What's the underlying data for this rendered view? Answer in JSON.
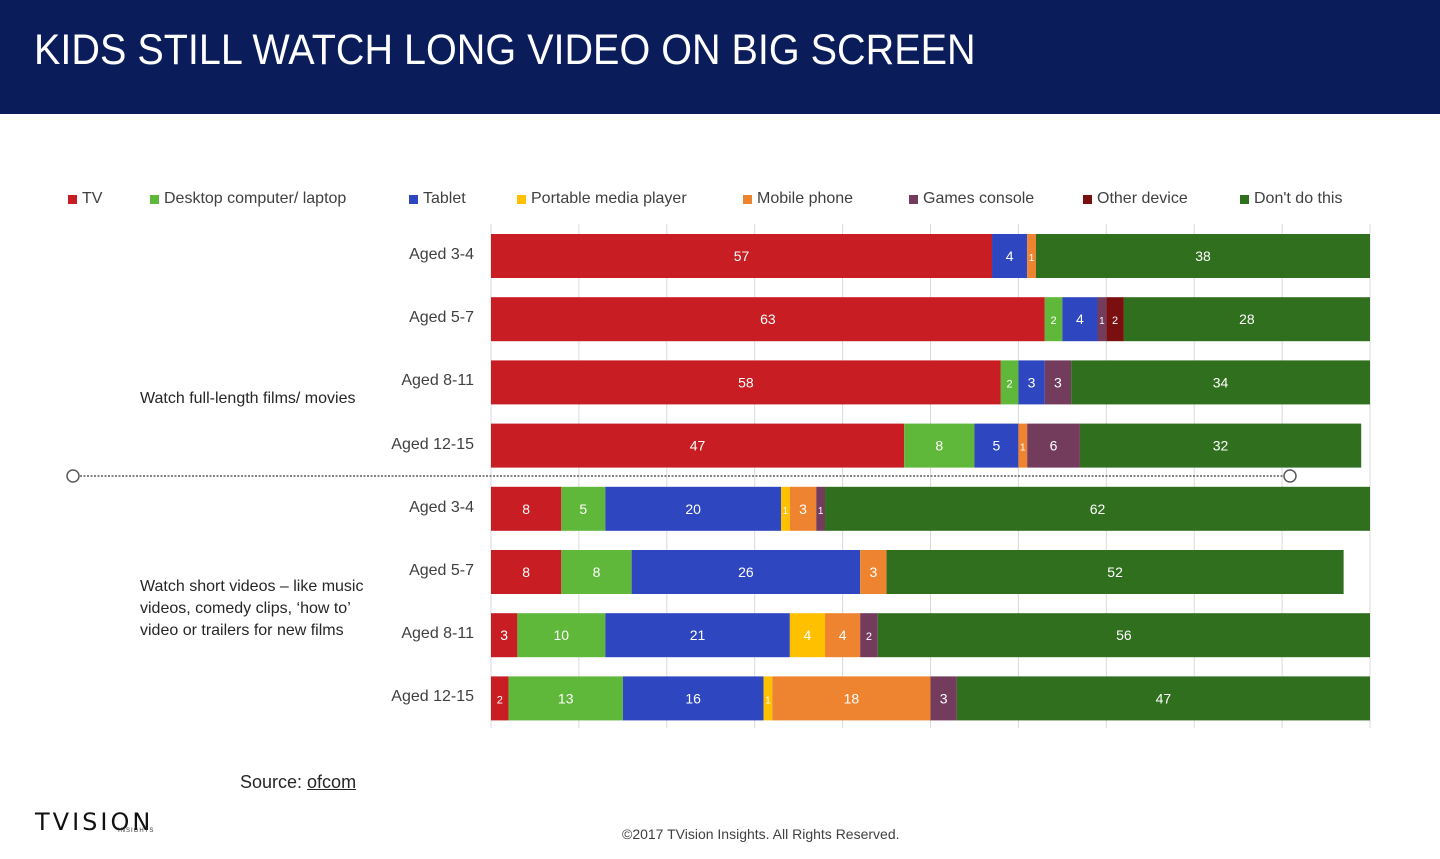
{
  "title": "KIDS STILL WATCH LONG VIDEO ON BIG SCREEN",
  "source_prefix": "Source: ",
  "source_link": "ofcom",
  "logo_text": "TVISION",
  "logo_sub": "INSIGHTS",
  "copyright": "©2017 TVision Insights. All Rights Reserved.",
  "chart_data": {
    "type": "bar",
    "orientation": "horizontal",
    "stacked": true,
    "xlim": [
      0,
      100
    ],
    "grid": true,
    "legend_position": "top",
    "series": [
      {
        "name": "TV",
        "color": "#c81e23",
        "values": [
          57,
          63,
          58,
          47,
          8,
          8,
          3,
          2
        ]
      },
      {
        "name": "Desktop computer/ laptop",
        "color": "#5fb839",
        "values": [
          0,
          2,
          2,
          8,
          5,
          8,
          10,
          13
        ]
      },
      {
        "name": "Tablet",
        "color": "#2e46bf",
        "values": [
          4,
          4,
          3,
          5,
          20,
          26,
          21,
          16
        ]
      },
      {
        "name": "Portable media player",
        "color": "#ffc000",
        "values": [
          0,
          0,
          0,
          0,
          1,
          0,
          4,
          1
        ]
      },
      {
        "name": "Mobile phone",
        "color": "#ef8430",
        "values": [
          1,
          0,
          0,
          1,
          3,
          3,
          4,
          18
        ]
      },
      {
        "name": "Games console",
        "color": "#733c5c",
        "values": [
          0,
          1,
          3,
          6,
          1,
          0,
          2,
          3
        ]
      },
      {
        "name": "Other device",
        "color": "#7a0f10",
        "values": [
          0,
          2,
          0,
          0,
          0,
          0,
          0,
          0
        ]
      },
      {
        "name": "Don't do this",
        "color": "#2f6f1e",
        "values": [
          38,
          28,
          34,
          32,
          62,
          52,
          56,
          47
        ]
      }
    ],
    "categories": [
      "Aged 3-4",
      "Aged 5-7",
      "Aged 8-11",
      "Aged 12-15",
      "Aged 3-4",
      "Aged 5-7",
      "Aged 8-11",
      "Aged 12-15"
    ],
    "groups": [
      {
        "label": "Watch full-length films/ movies",
        "rows": [
          0,
          1,
          2,
          3
        ]
      },
      {
        "label": "Watch short videos – like music videos, comedy clips, ‘how to’ video or trailers for new films",
        "rows": [
          4,
          5,
          6,
          7
        ]
      }
    ]
  }
}
